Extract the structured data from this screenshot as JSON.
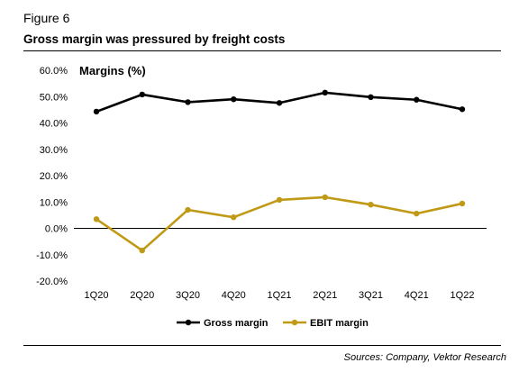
{
  "figure_label": "Figure 6",
  "figure_title": "Gross margin was pressured by freight costs",
  "sources": "Sources: Company, Vektor Research",
  "colors": {
    "gross": "#000000",
    "ebit": "#C09A16"
  },
  "chart_data": {
    "type": "line",
    "title": "Margins (%)",
    "xlabel": "",
    "ylabel": "",
    "categories": [
      "1Q20",
      "2Q20",
      "3Q20",
      "4Q20",
      "1Q21",
      "2Q21",
      "3Q21",
      "4Q21",
      "1Q22"
    ],
    "ylim": [
      -20,
      60
    ],
    "yticks": [
      60,
      50,
      40,
      30,
      20,
      10,
      0,
      -10,
      -20
    ],
    "ytick_labels": [
      "60.0%",
      "50.0%",
      "40.0%",
      "30.0%",
      "20.0%",
      "10.0%",
      "0.0%",
      "-10.0%",
      "-20.0%"
    ],
    "grid": false,
    "legend_position": "bottom",
    "series": [
      {
        "name": "Gross margin",
        "values": [
          44.3,
          50.8,
          47.9,
          49.0,
          47.6,
          51.5,
          49.8,
          48.8,
          45.2
        ]
      },
      {
        "name": "EBIT margin",
        "values": [
          3.5,
          -8.4,
          7.0,
          4.2,
          10.8,
          11.8,
          9.0,
          5.6,
          9.4
        ]
      }
    ]
  }
}
